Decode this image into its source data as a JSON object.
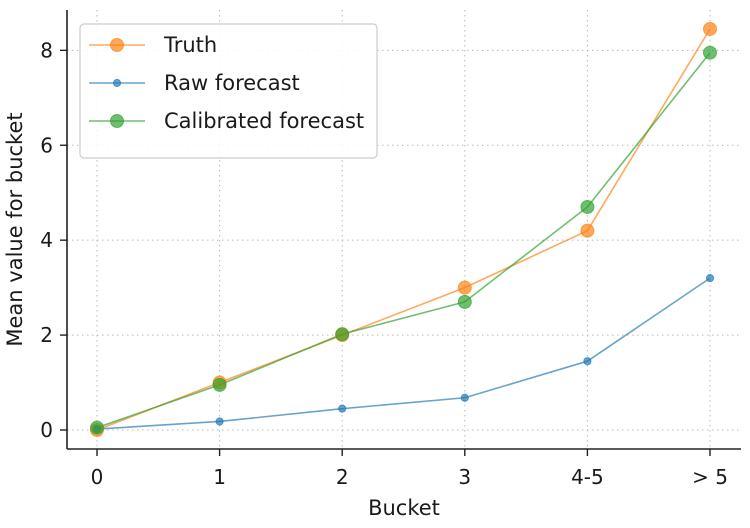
{
  "chart_data": {
    "type": "line",
    "title": "",
    "xlabel": "Bucket",
    "ylabel": "Mean value for bucket",
    "categories": [
      "0",
      "1",
      "2",
      "3",
      "4-5",
      "> 5"
    ],
    "ylim": [
      -0.4,
      8.85
    ],
    "yticks": [
      0,
      2,
      4,
      6,
      8
    ],
    "grid": true,
    "legend_position": "top-left",
    "series": [
      {
        "name": "Truth",
        "color": "#ff7f0e",
        "marker": "large-circle",
        "values": [
          0.0,
          1.0,
          2.0,
          3.0,
          4.2,
          8.45
        ]
      },
      {
        "name": "Raw forecast",
        "color": "#1f77b4",
        "marker": "small-circle",
        "values": [
          0.02,
          0.18,
          0.45,
          0.68,
          1.45,
          3.2
        ]
      },
      {
        "name": "Calibrated forecast",
        "color": "#2ca02c",
        "marker": "large-circle",
        "values": [
          0.05,
          0.95,
          2.02,
          2.7,
          4.7,
          7.95
        ]
      }
    ]
  }
}
